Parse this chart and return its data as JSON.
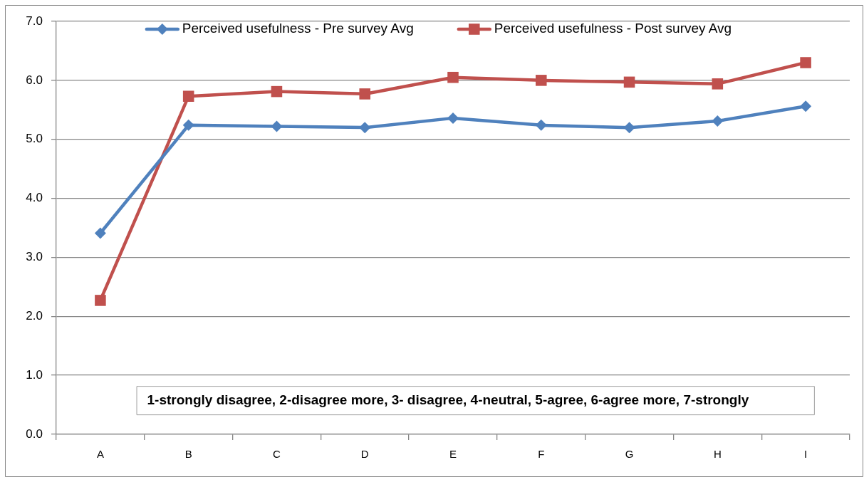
{
  "chart_data": {
    "type": "line",
    "categories": [
      "A",
      "B",
      "C",
      "D",
      "E",
      "F",
      "G",
      "H",
      "I"
    ],
    "series": [
      {
        "name": "Perceived usefulness - Pre survey Avg",
        "color": "#4f81bd",
        "marker": "diamond",
        "values": [
          3.41,
          5.24,
          5.22,
          5.2,
          5.36,
          5.24,
          5.2,
          5.31,
          5.56
        ]
      },
      {
        "name": "Perceived usefulness - Post survey Avg",
        "color": "#c0504d",
        "marker": "square",
        "values": [
          2.27,
          5.73,
          5.81,
          5.77,
          6.05,
          6.0,
          5.97,
          5.94,
          6.3
        ]
      }
    ],
    "ylim": [
      0,
      7
    ],
    "yticks": [
      {
        "value": 0,
        "label": "0.0"
      },
      {
        "value": 1,
        "label": "1.0"
      },
      {
        "value": 2,
        "label": "2.0"
      },
      {
        "value": 3,
        "label": "3.0"
      },
      {
        "value": 4,
        "label": "4.0"
      },
      {
        "value": 5,
        "label": "5.0"
      },
      {
        "value": 6,
        "label": "6.0"
      },
      {
        "value": 7,
        "label": "7.0"
      }
    ],
    "grid": "y",
    "legend": "top",
    "annotations": [
      "1-strongly disagree, 2-disagree more, 3- disagree, 4-neutral, 5-agree, 6-agree more, 7-strongly"
    ]
  }
}
